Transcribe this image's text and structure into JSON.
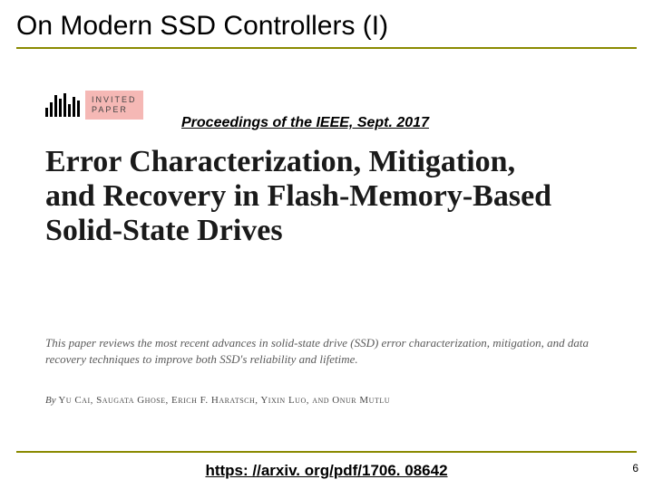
{
  "slide": {
    "title": "On Modern SSD Controllers (I)",
    "title_color": "#000000",
    "rule_color": "#8a8a00",
    "page_number": "6"
  },
  "badge": {
    "line1": "INVITED",
    "line2": "PAPER",
    "box_bg": "#f5b8b5",
    "barcode_heights": [
      10,
      16,
      24,
      20,
      26,
      14,
      22,
      18
    ]
  },
  "proceedings": "Proceedings of the IEEE, Sept. 2017",
  "paper": {
    "title": "Error Characterization, Mitigation, and Recovery in Flash-Memory-Based Solid-State Drives",
    "title_color": "#1a1a1a",
    "abstract": "This paper reviews the most recent advances in solid-state drive (SSD) error characterization, mitigation, and data recovery techniques to improve both SSD's reliability and lifetime.",
    "abstract_color": "#5a5a5a",
    "authors_by": "By ",
    "authors": "Yu Cai, Saugata Ghose, Erich F. Haratsch, Yixin Luo, and Onur Mutlu",
    "authors_color": "#4a4a4a"
  },
  "footer": {
    "link": "https: //arxiv. org/pdf/1706. 08642",
    "rule_color": "#8a8a00"
  }
}
